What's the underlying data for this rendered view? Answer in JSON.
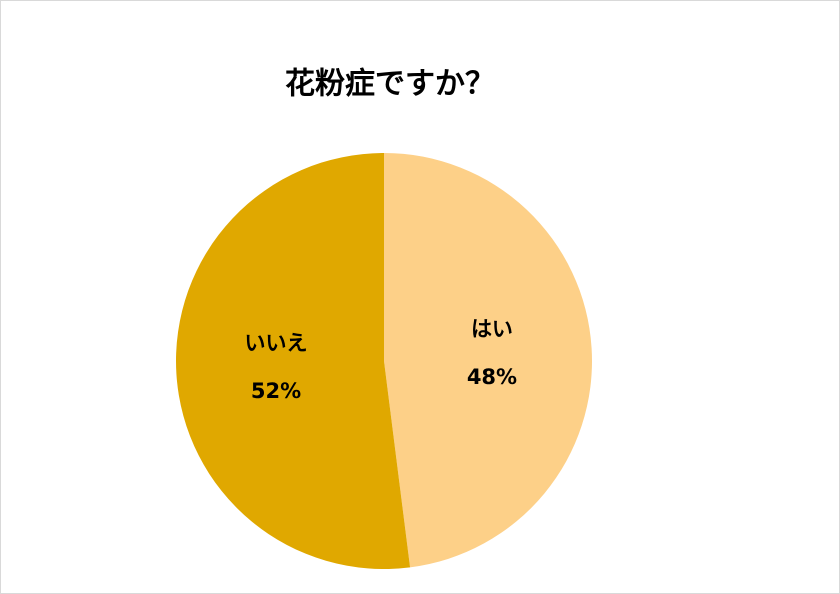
{
  "chart_data": {
    "type": "pie",
    "title": "花粉症ですか？",
    "categories": [
      "はい",
      "いいえ"
    ],
    "values": [
      48,
      52
    ],
    "value_labels": [
      "48%",
      "52%"
    ],
    "colors": [
      "#fdd088",
      "#e0a800"
    ]
  }
}
